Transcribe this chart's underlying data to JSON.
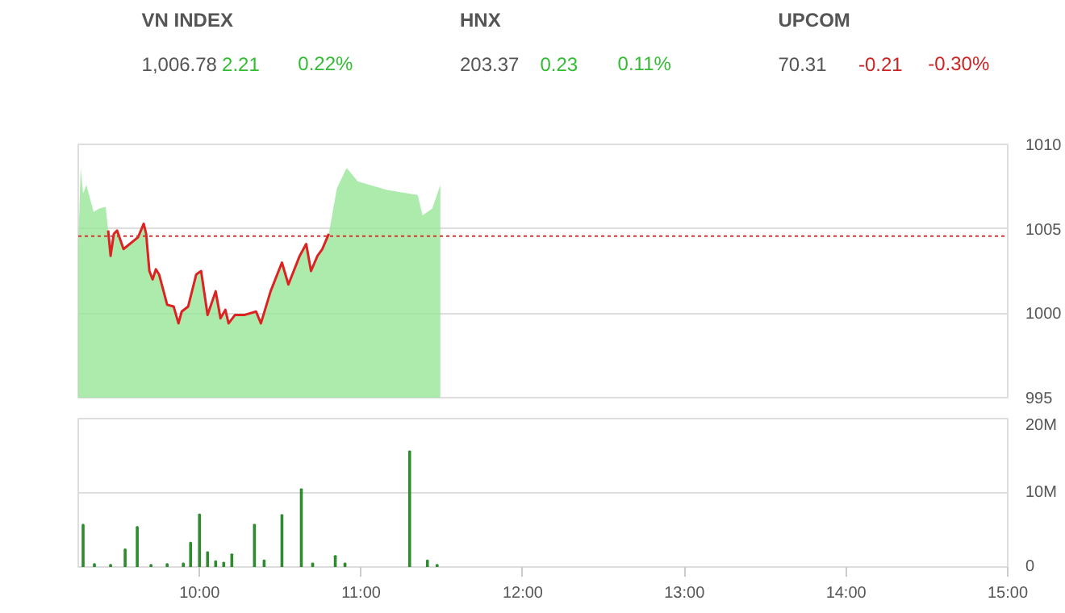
{
  "chart_data": [
    {
      "type": "other",
      "annotations": [
        "VN INDEX",
        "1,006.78",
        "2.21",
        "0.22%",
        "HNX",
        "203.37",
        "0.23",
        "0.11%",
        "UPCOM",
        "70.31",
        "-0.21",
        "-0.30%"
      ],
      "colors": [
        "#33bb33",
        "#33bb33",
        "#cc2222"
      ]
    },
    {
      "type": "area",
      "xlim": [
        9.25,
        15
      ],
      "ylim": [
        995,
        1010
      ],
      "yticks": [
        995,
        1000,
        1005,
        1010
      ],
      "tick_labels": "y",
      "grid": "y",
      "ref_lines": [
        {
          "axis": "y",
          "value": 1004.57,
          "color": "#dd3333",
          "line_style": "dotted"
        }
      ],
      "series": [
        {
          "type": "area",
          "color": "#99e699",
          "x": [
            9.25,
            9.265,
            9.28,
            9.3,
            9.345,
            9.38,
            9.42,
            9.435,
            9.45,
            9.47,
            9.49,
            9.53,
            9.62,
            9.655,
            9.67,
            9.69,
            9.71,
            9.73,
            9.75,
            9.8,
            9.84,
            9.87,
            9.89,
            9.93,
            9.98,
            10.01,
            10.03,
            10.05,
            10.1,
            10.13,
            10.16,
            10.18,
            10.22,
            10.28,
            10.35,
            10.38,
            10.44,
            10.51,
            10.55,
            10.62,
            10.66,
            10.69,
            10.73,
            10.76,
            10.8,
            10.85,
            10.91,
            10.98,
            11.16,
            11.35,
            11.38,
            11.44,
            11.49
          ],
          "values": [
            1004.0,
            1008.6,
            1007.1,
            1007.6,
            1006.0,
            1006.2,
            1006.3,
            1004.9,
            1003.4,
            1004.7,
            1004.9,
            1003.8,
            1004.5,
            1005.3,
            1004.7,
            1002.5,
            1002.0,
            1002.6,
            1002.3,
            1000.5,
            1000.4,
            999.4,
            1000.1,
            1000.4,
            1002.3,
            1002.5,
            1001.2,
            999.9,
            1001.3,
            999.7,
            1000.2,
            999.4,
            999.9,
            999.9,
            1000.1,
            999.4,
            1001.3,
            1003.0,
            1001.7,
            1003.4,
            1004.1,
            1002.5,
            1003.4,
            1003.8,
            1004.7,
            1007.4,
            1008.6,
            1007.8,
            1007.3,
            1007.0,
            1005.8,
            1006.2,
            1007.6
          ]
        },
        {
          "type": "line",
          "color": "#dd2222",
          "x": [
            9.435,
            9.45,
            9.47,
            9.49,
            9.53,
            9.62,
            9.655,
            9.67,
            9.69,
            9.71,
            9.73,
            9.75,
            9.8,
            9.84,
            9.87,
            9.89,
            9.93,
            9.98,
            10.01,
            10.03,
            10.05,
            10.1,
            10.13,
            10.16,
            10.18,
            10.22,
            10.28,
            10.35,
            10.38,
            10.44,
            10.51,
            10.55,
            10.62,
            10.66,
            10.69,
            10.73,
            10.76,
            10.8
          ],
          "values": [
            1004.9,
            1003.4,
            1004.7,
            1004.9,
            1003.8,
            1004.5,
            1005.3,
            1004.7,
            1002.5,
            1002.0,
            1002.6,
            1002.3,
            1000.5,
            1000.4,
            999.4,
            1000.1,
            1000.4,
            1002.3,
            1002.5,
            1001.2,
            999.9,
            1001.3,
            999.7,
            1000.2,
            999.4,
            999.9,
            999.9,
            1000.1,
            999.4,
            1001.3,
            1003.0,
            1001.7,
            1003.4,
            1004.1,
            1002.5,
            1003.4,
            1003.8,
            1004.7
          ]
        }
      ]
    },
    {
      "type": "bar",
      "xlim": [
        9.25,
        15
      ],
      "xticks": [
        {
          "value": 10,
          "label": "10:00"
        },
        {
          "value": 11,
          "label": "11:00"
        },
        {
          "value": 12,
          "label": "12:00"
        },
        {
          "value": 13,
          "label": "13:00"
        },
        {
          "value": 14,
          "label": "14:00"
        },
        {
          "value": 15,
          "label": "15:00"
        }
      ],
      "ylim": [
        0,
        20
      ],
      "yticks": [
        {
          "value": 0,
          "label": "0"
        },
        {
          "value": 10,
          "label": "10M"
        },
        {
          "value": 20,
          "label": "20M"
        }
      ],
      "grid": "y",
      "series": [
        {
          "color": "#2e8b2e",
          "x": [
            9.28,
            9.35,
            9.45,
            9.54,
            9.615,
            9.7,
            9.8,
            9.9,
            9.945,
            10.0,
            10.05,
            10.1,
            10.15,
            10.2,
            10.34,
            10.4,
            10.51,
            10.63,
            10.7,
            10.84,
            10.9,
            11.3,
            11.41,
            11.47
          ],
          "values": [
            5.7,
            0.4,
            0.3,
            2.4,
            5.4,
            0.3,
            0.4,
            0.5,
            3.3,
            7.1,
            2.0,
            0.8,
            0.6,
            1.7,
            5.7,
            0.9,
            7.0,
            10.5,
            0.5,
            1.5,
            0.5,
            15.6,
            0.9,
            0.3
          ]
        }
      ]
    }
  ]
}
